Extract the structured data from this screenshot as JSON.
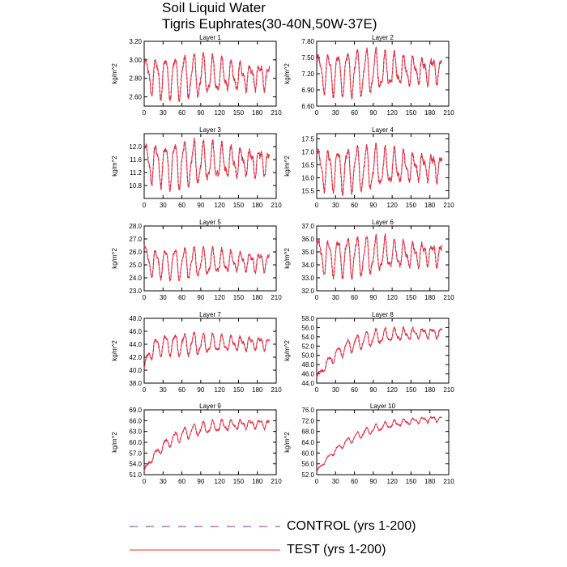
{
  "title": "Soil Liquid Water",
  "subtitle": "Tigris Euphrates(30-40N,50W-37E)",
  "colors": {
    "control": "#3344cc",
    "test": "#ff2a2a"
  },
  "legend": [
    {
      "key": "control",
      "label": "CONTROL (yrs 1-200)",
      "style": "dashed"
    },
    {
      "key": "test",
      "label": "TEST (yrs 1-200)",
      "style": "solid"
    }
  ],
  "chart_data": [
    {
      "type": "line",
      "title": "Layer 1",
      "xlabel": "",
      "ylabel": "kg/m^2",
      "xlim": [
        0,
        210
      ],
      "xticks": [
        0,
        30,
        60,
        90,
        120,
        150,
        180,
        210
      ],
      "xtick_labels": [
        "0",
        "30",
        "60",
        "90",
        "120",
        "150",
        "180",
        "210"
      ],
      "ylim": [
        2.5,
        3.2
      ],
      "yticks": [
        2.6,
        2.8,
        3.0,
        3.2
      ],
      "ytick_labels": [
        "2.60",
        "2.80",
        "3.00",
        "3.20"
      ],
      "series_x_range": [
        0,
        199
      ],
      "cycle_length": 15,
      "amplitude": 0.22,
      "mean": [
        2.82,
        2.83
      ],
      "spin_up": 2.95,
      "settle_years": 3,
      "series": [
        {
          "name": "CONTROL (yrs 1-200)",
          "key": "control"
        },
        {
          "name": "TEST (yrs 1-200)",
          "key": "test"
        }
      ]
    },
    {
      "type": "line",
      "title": "Layer 2",
      "xlabel": "",
      "ylabel": "kg/m^2",
      "xlim": [
        0,
        210
      ],
      "xticks": [
        0,
        30,
        60,
        90,
        120,
        150,
        180,
        210
      ],
      "xtick_labels": [
        "0",
        "30",
        "60",
        "90",
        "120",
        "150",
        "180",
        "210"
      ],
      "ylim": [
        6.6,
        7.8
      ],
      "yticks": [
        6.6,
        6.9,
        7.2,
        7.5,
        7.8
      ],
      "ytick_labels": [
        "6.60",
        "6.90",
        "7.20",
        "7.50",
        "7.80"
      ],
      "series_x_range": [
        0,
        199
      ],
      "cycle_length": 15,
      "amplitude": 0.38,
      "mean": [
        7.2,
        7.28
      ],
      "spin_up": 7.45,
      "settle_years": 3,
      "series": [
        {
          "name": "CONTROL (yrs 1-200)",
          "key": "control"
        },
        {
          "name": "TEST (yrs 1-200)",
          "key": "test"
        }
      ]
    },
    {
      "type": "line",
      "title": "Layer 3",
      "xlabel": "",
      "ylabel": "kg/m^2",
      "xlim": [
        0,
        210
      ],
      "xticks": [
        0,
        30,
        60,
        90,
        120,
        150,
        180,
        210
      ],
      "xtick_labels": [
        "0",
        "30",
        "60",
        "90",
        "120",
        "150",
        "180",
        "210"
      ],
      "ylim": [
        10.4,
        12.4
      ],
      "yticks": [
        10.8,
        11.2,
        11.6,
        12.0
      ],
      "ytick_labels": [
        "10.8",
        "11.2",
        "11.6",
        "12.0"
      ],
      "series_x_range": [
        0,
        199
      ],
      "cycle_length": 15,
      "amplitude": 0.65,
      "mean": [
        11.45,
        11.55
      ],
      "spin_up": 11.9,
      "settle_years": 3,
      "series": [
        {
          "name": "CONTROL (yrs 1-200)",
          "key": "control"
        },
        {
          "name": "TEST (yrs 1-200)",
          "key": "test"
        }
      ]
    },
    {
      "type": "line",
      "title": "Layer 4",
      "xlabel": "",
      "ylabel": "kg/m^2",
      "xlim": [
        0,
        210
      ],
      "xticks": [
        0,
        30,
        60,
        90,
        120,
        150,
        180,
        210
      ],
      "xtick_labels": [
        "0",
        "30",
        "60",
        "90",
        "120",
        "150",
        "180",
        "210"
      ],
      "ylim": [
        15.2,
        17.7
      ],
      "yticks": [
        15.5,
        16.0,
        16.5,
        17.0,
        17.5
      ],
      "ytick_labels": [
        "15.5",
        "16.0",
        "16.5",
        "17.0",
        "17.5"
      ],
      "series_x_range": [
        0,
        199
      ],
      "cycle_length": 15,
      "amplitude": 0.8,
      "mean": [
        16.3,
        16.45
      ],
      "spin_up": 16.9,
      "settle_years": 3,
      "series": [
        {
          "name": "CONTROL (yrs 1-200)",
          "key": "control"
        },
        {
          "name": "TEST (yrs 1-200)",
          "key": "test"
        }
      ]
    },
    {
      "type": "line",
      "title": "Layer 5",
      "xlabel": "",
      "ylabel": "kg/m^2",
      "xlim": [
        0,
        210
      ],
      "xticks": [
        0,
        30,
        60,
        90,
        120,
        150,
        180,
        210
      ],
      "xtick_labels": [
        "0",
        "30",
        "60",
        "90",
        "120",
        "150",
        "180",
        "210"
      ],
      "ylim": [
        23.0,
        28.0
      ],
      "yticks": [
        23.0,
        24.0,
        25.0,
        26.0,
        27.0,
        28.0
      ],
      "ytick_labels": [
        "23.0",
        "24.0",
        "25.0",
        "26.0",
        "27.0",
        "28.0"
      ],
      "series_x_range": [
        0,
        199
      ],
      "cycle_length": 15,
      "amplitude": 1.1,
      "mean": [
        25.1,
        25.3
      ],
      "spin_up": 26.4,
      "settle_years": 3,
      "series": [
        {
          "name": "CONTROL (yrs 1-200)",
          "key": "control"
        },
        {
          "name": "TEST (yrs 1-200)",
          "key": "test"
        }
      ]
    },
    {
      "type": "line",
      "title": "Layer 6",
      "xlabel": "",
      "ylabel": "kg/m^2",
      "xlim": [
        0,
        210
      ],
      "xticks": [
        0,
        30,
        60,
        90,
        120,
        150,
        180,
        210
      ],
      "xtick_labels": [
        "0",
        "30",
        "60",
        "90",
        "120",
        "150",
        "180",
        "210"
      ],
      "ylim": [
        32.0,
        37.0
      ],
      "yticks": [
        32.0,
        33.0,
        34.0,
        35.0,
        36.0,
        37.0
      ],
      "ytick_labels": [
        "32.0",
        "33.0",
        "34.0",
        "35.0",
        "36.0",
        "37.0"
      ],
      "series_x_range": [
        0,
        199
      ],
      "cycle_length": 15,
      "amplitude": 1.4,
      "mean": [
        34.6,
        34.9
      ],
      "spin_up": 35.6,
      "settle_years": 3,
      "series": [
        {
          "name": "CONTROL (yrs 1-200)",
          "key": "control"
        },
        {
          "name": "TEST (yrs 1-200)",
          "key": "test"
        }
      ]
    },
    {
      "type": "line",
      "title": "Layer 7",
      "xlabel": "",
      "ylabel": "kg/m^2",
      "xlim": [
        0,
        210
      ],
      "xticks": [
        0,
        30,
        60,
        90,
        120,
        150,
        180,
        210
      ],
      "xtick_labels": [
        "0",
        "30",
        "60",
        "90",
        "120",
        "150",
        "180",
        "210"
      ],
      "ylim": [
        38.0,
        48.0
      ],
      "yticks": [
        38.0,
        40.0,
        42.0,
        44.0,
        46.0,
        48.0
      ],
      "ytick_labels": [
        "38.0",
        "40.0",
        "42.0",
        "44.0",
        "46.0",
        "48.0"
      ],
      "series_x_range": [
        0,
        199
      ],
      "cycle_length": 15,
      "amplitude": 1.6,
      "mean": [
        43.9,
        44.2
      ],
      "spin_up": 40.0,
      "settle_years": 8,
      "series": [
        {
          "name": "CONTROL (yrs 1-200)",
          "key": "control"
        },
        {
          "name": "TEST (yrs 1-200)",
          "key": "test"
        }
      ]
    },
    {
      "type": "line",
      "title": "Layer 8",
      "xlabel": "",
      "ylabel": "kg/m^2",
      "xlim": [
        0,
        210
      ],
      "xticks": [
        0,
        30,
        60,
        90,
        120,
        150,
        180,
        210
      ],
      "xtick_labels": [
        "0",
        "30",
        "60",
        "90",
        "120",
        "150",
        "180",
        "210"
      ],
      "ylim": [
        44.0,
        58.0
      ],
      "yticks": [
        44.0,
        46.0,
        48.0,
        50.0,
        52.0,
        54.0,
        56.0,
        58.0
      ],
      "ytick_labels": [
        "44.0",
        "46.0",
        "48.0",
        "50.0",
        "52.0",
        "54.0",
        "56.0",
        "58.0"
      ],
      "series_x_range": [
        0,
        199
      ],
      "cycle_length": 15,
      "amplitude": 1.8,
      "mean": [
        54.6,
        55.0
      ],
      "spin_up": 45.0,
      "settle_years": 40,
      "series": [
        {
          "name": "CONTROL (yrs 1-200)",
          "key": "control"
        },
        {
          "name": "TEST (yrs 1-200)",
          "key": "test"
        }
      ]
    },
    {
      "type": "line",
      "title": "Layer 9",
      "xlabel": "",
      "ylabel": "kg/m^2",
      "xlim": [
        0,
        210
      ],
      "xticks": [
        0,
        30,
        60,
        90,
        120,
        150,
        180,
        210
      ],
      "xtick_labels": [
        "0",
        "30",
        "60",
        "90",
        "120",
        "150",
        "180",
        "210"
      ],
      "ylim": [
        51.0,
        69.0
      ],
      "yticks": [
        51.0,
        54.0,
        57.0,
        60.0,
        63.0,
        66.0,
        69.0
      ],
      "ytick_labels": [
        "51.0",
        "54.0",
        "57.0",
        "60.0",
        "63.0",
        "66.0",
        "69.0"
      ],
      "series_x_range": [
        0,
        199
      ],
      "cycle_length": 15,
      "amplitude": 1.9,
      "mean": [
        65.0,
        65.3
      ],
      "spin_up": 52.0,
      "settle_years": 40,
      "series": [
        {
          "name": "CONTROL (yrs 1-200)",
          "key": "control"
        },
        {
          "name": "TEST (yrs 1-200)",
          "key": "test"
        }
      ]
    },
    {
      "type": "line",
      "title": "Layer 10",
      "xlabel": "",
      "ylabel": "kg/m^2",
      "xlim": [
        0,
        210
      ],
      "xticks": [
        0,
        30,
        60,
        90,
        120,
        150,
        180,
        210
      ],
      "xtick_labels": [
        "0",
        "30",
        "60",
        "90",
        "120",
        "150",
        "180",
        "210"
      ],
      "ylim": [
        52.0,
        76.0
      ],
      "yticks": [
        52.0,
        56.0,
        60.0,
        64.0,
        68.0,
        72.0,
        76.0
      ],
      "ytick_labels": [
        "52.0",
        "56.0",
        "60.0",
        "64.0",
        "68.0",
        "72.0",
        "76.0"
      ],
      "series_x_range": [
        0,
        199
      ],
      "cycle_length": 15,
      "amplitude": 1.7,
      "mean": [
        73.2,
        73.6
      ],
      "spin_up": 53.0,
      "settle_years": 60,
      "series": [
        {
          "name": "CONTROL (yrs 1-200)",
          "key": "control"
        },
        {
          "name": "TEST (yrs 1-200)",
          "key": "test"
        }
      ]
    }
  ]
}
